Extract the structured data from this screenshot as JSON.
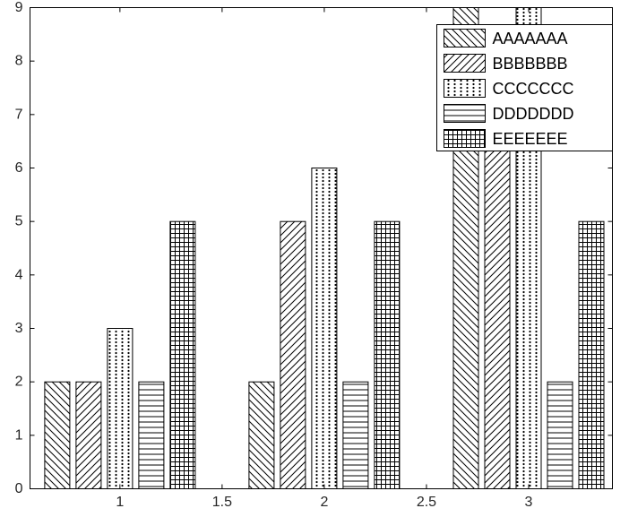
{
  "figure": {
    "background_color": "#ffffff",
    "axis_color": "#000000",
    "tick_label_color": "#262626",
    "legend_text_color": "#000000"
  },
  "axes": {
    "x_ticks": [
      {
        "value": 1,
        "label": "1"
      },
      {
        "value": 1.5,
        "label": "1.5"
      },
      {
        "value": 2,
        "label": "2"
      },
      {
        "value": 2.5,
        "label": "2.5"
      },
      {
        "value": 3,
        "label": "3"
      }
    ],
    "y_ticks": [
      {
        "value": 0,
        "label": "0"
      },
      {
        "value": 1,
        "label": "1"
      },
      {
        "value": 2,
        "label": "2"
      },
      {
        "value": 3,
        "label": "3"
      },
      {
        "value": 4,
        "label": "4"
      },
      {
        "value": 5,
        "label": "5"
      },
      {
        "value": 6,
        "label": "6"
      },
      {
        "value": 7,
        "label": "7"
      },
      {
        "value": 8,
        "label": "8"
      },
      {
        "value": 9,
        "label": "9"
      }
    ]
  },
  "legend": {
    "position": "top-right",
    "entries": [
      {
        "label": "AAAAAAA",
        "pattern": "diagonal-back"
      },
      {
        "label": "BBBBBBB",
        "pattern": "diagonal-forward"
      },
      {
        "label": "CCCCCCC",
        "pattern": "dots"
      },
      {
        "label": "DDDDDDD",
        "pattern": "horizontal"
      },
      {
        "label": "EEEEEEE",
        "pattern": "grid"
      }
    ]
  },
  "chart_data": {
    "type": "bar",
    "title": "",
    "xlabel": "",
    "ylabel": "",
    "categories": [
      1,
      2,
      3
    ],
    "series": [
      {
        "name": "AAAAAAA",
        "pattern": "diagonal-back",
        "values": [
          2,
          2,
          10
        ]
      },
      {
        "name": "BBBBBBB",
        "pattern": "diagonal-forward",
        "values": [
          2,
          5,
          8
        ]
      },
      {
        "name": "CCCCCCC",
        "pattern": "dots",
        "values": [
          3,
          6,
          9
        ]
      },
      {
        "name": "DDDDDDD",
        "pattern": "horizontal",
        "values": [
          2,
          2,
          2
        ]
      },
      {
        "name": "EEEEEEE",
        "pattern": "grid",
        "values": [
          5,
          5,
          5
        ]
      }
    ],
    "bar_fill": "#ffffff",
    "bar_edge": "#000000",
    "x_tick_labels": [
      "1",
      "1.5",
      "2",
      "2.5",
      "3"
    ],
    "y_tick_labels": [
      "0",
      "1",
      "2",
      "3",
      "4",
      "5",
      "6",
      "7",
      "8",
      "9"
    ],
    "xlim": [
      0.56,
      3.41
    ],
    "ylim": [
      0,
      9
    ],
    "grid": false,
    "legend_position": "top-right"
  }
}
